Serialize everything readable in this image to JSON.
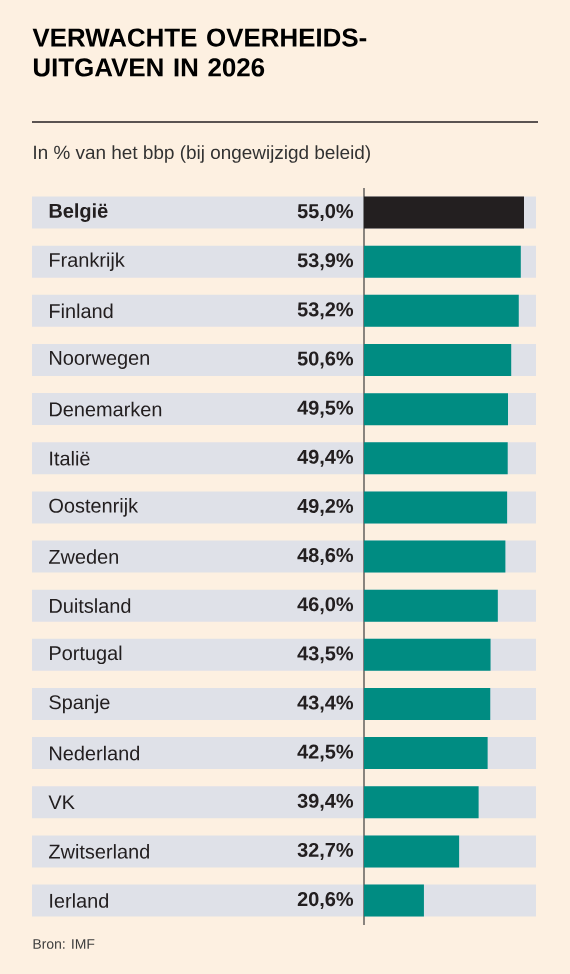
{
  "chart_data": {
    "type": "bar",
    "orientation": "horizontal",
    "title": "VERWACHTE OVERHEIDS-UITGAVEN IN 2026",
    "subtitle": "In % van het bbp (bij ongewijzigd beleid)",
    "categories": [
      "België",
      "Frankrijk",
      "Finland",
      "Noorwegen",
      "Denemarken",
      "Italië",
      "Oostenrijk",
      "Zweden",
      "Duitsland",
      "Portugal",
      "Spanje",
      "Nederland",
      "VK",
      "Zwitserland",
      "Ierland"
    ],
    "values": [
      55.0,
      53.9,
      53.2,
      50.6,
      49.5,
      49.4,
      49.2,
      48.6,
      46.0,
      43.5,
      43.4,
      42.5,
      39.4,
      32.7,
      20.6
    ],
    "value_labels": [
      "55,0%",
      "53,9%",
      "53,2%",
      "50,6%",
      "49,5%",
      "49,4%",
      "49,2%",
      "48,6%",
      "46,0%",
      "43,5%",
      "43,4%",
      "42,5%",
      "39,4%",
      "32,7%",
      "20,6%"
    ],
    "colors": [
      "#231f20",
      "#008c82",
      "#008c82",
      "#008c82",
      "#008c82",
      "#008c82",
      "#008c82",
      "#008c82",
      "#008c82",
      "#008c82",
      "#008c82",
      "#008c82",
      "#008c82",
      "#008c82",
      "#008c82"
    ],
    "annotations": [
      "Bron: IMF"
    ]
  }
}
